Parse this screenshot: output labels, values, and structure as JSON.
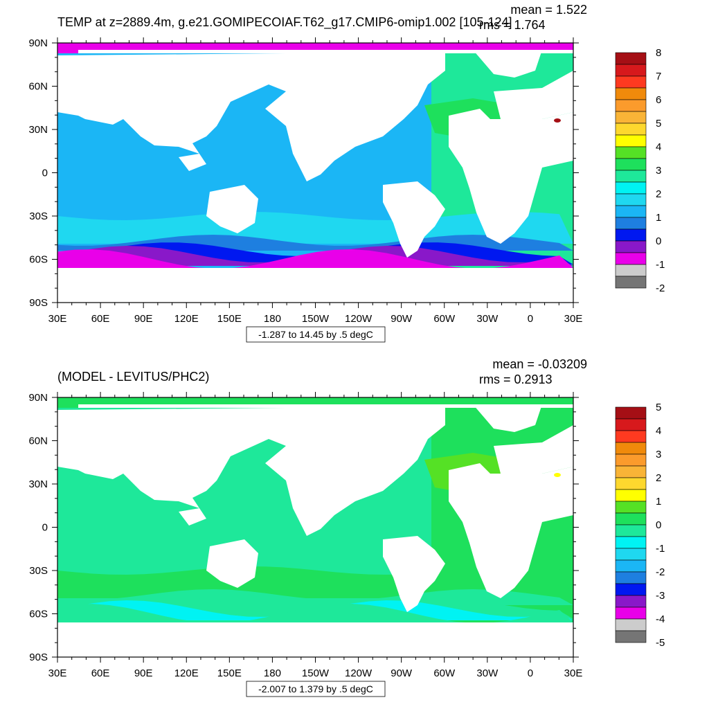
{
  "lon_ticks": [
    "30E",
    "60E",
    "90E",
    "120E",
    "150E",
    "180",
    "150W",
    "120W",
    "90W",
    "60W",
    "30W",
    "0",
    "30E"
  ],
  "lat_ticks": [
    "90N",
    "60N",
    "30N",
    "0",
    "30S",
    "60S",
    "90S"
  ],
  "panels": [
    {
      "title": "TEMP at z=2889.4m, g.e21.GOMIPECOIAF.T62_g17.CMIP6-omip1.002 [105-124]",
      "mean_label": "mean = 1.522",
      "rms_label": "rms = 1.764",
      "range_label": "-1.287 to 14.45 by .5 degC",
      "colorbar": {
        "labels": [
          "8",
          "7",
          "6",
          "5",
          "4",
          "3",
          "2",
          "1",
          "0",
          "-1",
          "-2"
        ],
        "colors": [
          "#a50f15",
          "#d7191c",
          "#fe3a20",
          "#f08a0b",
          "#fb9b2c",
          "#f9b437",
          "#fdd82e",
          "#ffff00",
          "#55e125",
          "#1ee05c",
          "#1ee89a",
          "#00f3f3",
          "#1fd8f0",
          "#1bb6f5",
          "#1e7fe0",
          "#0018f0",
          "#8918c9",
          "#e900e9",
          "#cccccc",
          "#757575"
        ],
        "region_colors": {
          "arctic": "#e900e9",
          "pacific": "#1bb6f5",
          "indian": "#1bb6f5",
          "atlantic": "#1ee89a",
          "north_atlantic_warm": "#1ee05c",
          "southern_1": "#1fd8f0",
          "southern_2": "#1e7fe0",
          "southern_3": "#0018f0",
          "southern_4": "#8918c9",
          "southern_5": "#e900e9",
          "spot": "#a50f15"
        }
      }
    },
    {
      "title": "(MODEL - LEVITUS/PHC2)",
      "mean_label": "mean = -0.03209",
      "rms_label": "rms = 0.2913",
      "range_label": "-2.007 to 1.379 by .5 degC",
      "colorbar": {
        "labels": [
          "5",
          "4",
          "3",
          "2",
          "1",
          "0",
          "-1",
          "-2",
          "-3",
          "-4",
          "-5"
        ],
        "colors": [
          "#a50f15",
          "#d7191c",
          "#fe3a20",
          "#f08a0b",
          "#fb9b2c",
          "#f9b437",
          "#fdd82e",
          "#ffff00",
          "#55e125",
          "#1ee05c",
          "#1ee89a",
          "#00f3f3",
          "#1fd8f0",
          "#1bb6f5",
          "#1e7fe0",
          "#0018f0",
          "#8918c9",
          "#e900e9",
          "#cccccc",
          "#757575"
        ],
        "region_colors": {
          "arctic": "#1ee05c",
          "pacific": "#1ee89a",
          "indian": "#1ee89a",
          "atlantic": "#1ee05c",
          "north_atlantic_warm": "#55e125",
          "southern_1": "#1ee05c",
          "southern_2": "#1ee89a",
          "southern_3": "#1ee89a",
          "southern_4": "#00f3f3",
          "southern_5": "#1ee89a",
          "spot": "#ffff00"
        }
      }
    }
  ]
}
